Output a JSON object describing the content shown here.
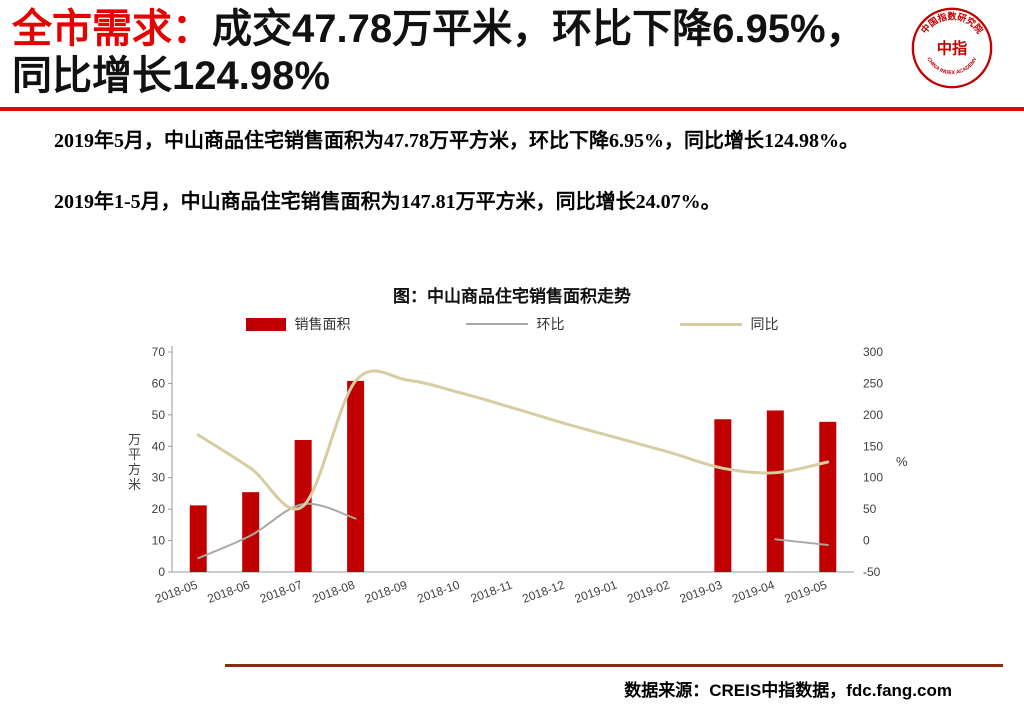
{
  "header": {
    "title_prefix": "全市需求：",
    "title_line1": "成交47.78万平米，环比下降6.95%，",
    "title_line2": "同比增长124.98%"
  },
  "logo": {
    "ring_text_top": "中国指数研究院",
    "ring_text_bottom": "CHINA INDEX ACADEMY",
    "center_text": "中指"
  },
  "paragraphs": [
    "2019年5月，中山商品住宅销售面积为47.78万平方米，环比下降6.95%，同比增长124.98%。",
    "2019年1-5月，中山商品住宅销售面积为147.81万平方米，同比增长24.07%。"
  ],
  "chart_data": {
    "type": "bar+line",
    "title": "图：中山商品住宅销售面积走势",
    "categories": [
      "2018-05",
      "2018-06",
      "2018-07",
      "2018-08",
      "2018-09",
      "2018-10",
      "2018-11",
      "2018-12",
      "2019-01",
      "2019-02",
      "2019-03",
      "2019-04",
      "2019-05"
    ],
    "bar_series": {
      "name": "销售面积",
      "color": "#c00000",
      "axis": "left",
      "values": [
        21.2,
        25.4,
        42.0,
        60.8,
        null,
        null,
        null,
        null,
        null,
        null,
        48.6,
        51.4,
        47.78
      ]
    },
    "line_series": [
      {
        "name": "环比",
        "color": "#a8a8a8",
        "axis": "right",
        "width": 2,
        "values": [
          -28,
          8,
          58,
          35,
          null,
          null,
          null,
          null,
          null,
          null,
          null,
          2,
          -6.95
        ]
      },
      {
        "name": "同比",
        "color": "#d6cda2",
        "axis": "right",
        "width": 3,
        "values": [
          168,
          115,
          55,
          254,
          255,
          235,
          211,
          186,
          163,
          140,
          115,
          108,
          124.98
        ]
      }
    ],
    "ylabel_left": "万平方米",
    "ylabel_right": "%",
    "ylim_left": [
      0,
      70
    ],
    "ytick_left": 10,
    "ylim_right": [
      -50,
      300
    ],
    "ytick_right": 50,
    "grid": false,
    "legend_position": "top"
  },
  "footer": {
    "source": "数据来源：CREIS中指数据，fdc.fang.com"
  },
  "colors": {
    "accent_red": "#e60000",
    "bar_red": "#c00000",
    "line_gray": "#a8a8a8",
    "line_tan": "#d6cda2",
    "footer_line": "#8a2b12"
  }
}
